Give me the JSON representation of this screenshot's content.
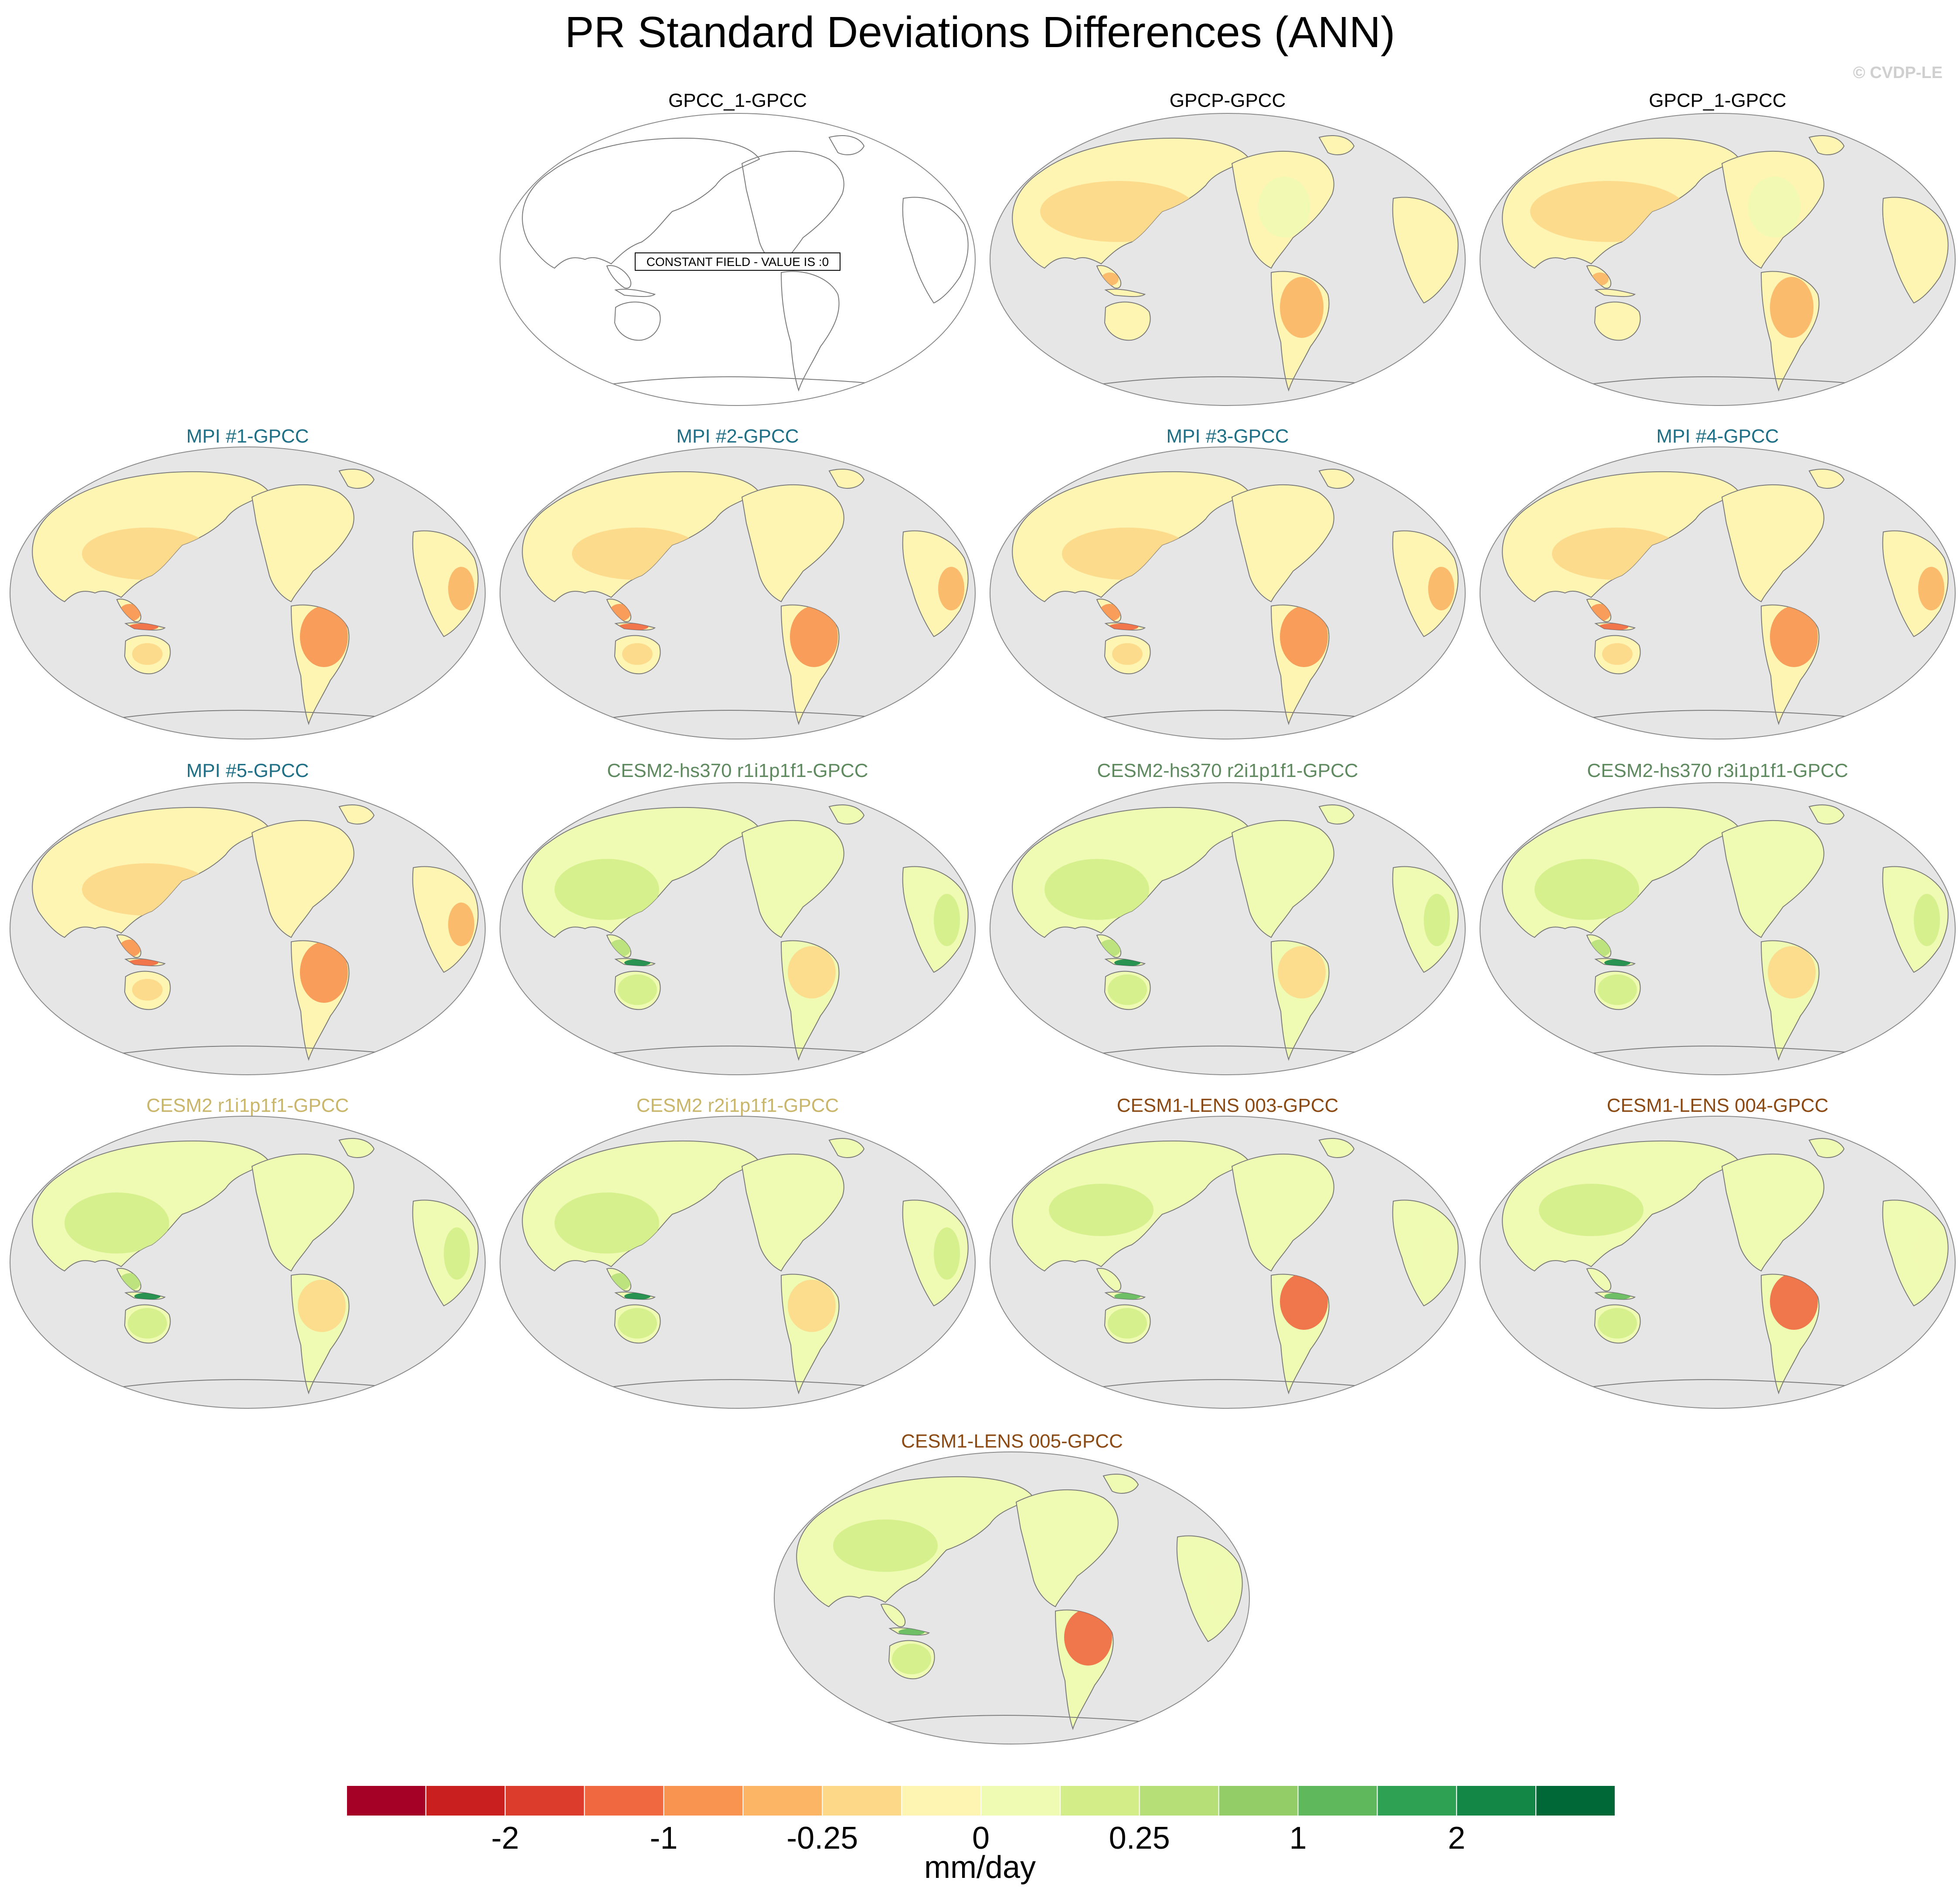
{
  "figure": {
    "title": "PR Standard Deviations Differences (ANN)",
    "watermark": "© CVDP-LE",
    "constant_field_note": "CONSTANT FIELD - VALUE IS :0"
  },
  "colors": {
    "land_gray": "#e6e6e6",
    "coast": "#7a7a7a",
    "title_obs": "#000000",
    "title_mpi": "#1f6f86",
    "title_cesm2hs": "#5f8a5f",
    "title_cesm2": "#c9b66b",
    "title_cesm1": "#8b4a13"
  },
  "panels": [
    {
      "title": "GPCC_1-GPCC",
      "group": "obs",
      "constant": true,
      "pattern": "none"
    },
    {
      "title": "GPCP-GPCC",
      "group": "obs",
      "constant": false,
      "pattern": "gpcp"
    },
    {
      "title": "GPCP_1-GPCC",
      "group": "obs",
      "constant": false,
      "pattern": "gpcp"
    },
    {
      "title": "MPI #1-GPCC",
      "group": "mpi",
      "constant": false,
      "pattern": "mpi"
    },
    {
      "title": "MPI #2-GPCC",
      "group": "mpi",
      "constant": false,
      "pattern": "mpi"
    },
    {
      "title": "MPI #3-GPCC",
      "group": "mpi",
      "constant": false,
      "pattern": "mpi"
    },
    {
      "title": "MPI #4-GPCC",
      "group": "mpi",
      "constant": false,
      "pattern": "mpi"
    },
    {
      "title": "MPI #5-GPCC",
      "group": "mpi",
      "constant": false,
      "pattern": "mpi"
    },
    {
      "title": "CESM2-hs370 r1i1p1f1-GPCC",
      "group": "cesm2hs",
      "constant": false,
      "pattern": "cesm2"
    },
    {
      "title": "CESM2-hs370 r2i1p1f1-GPCC",
      "group": "cesm2hs",
      "constant": false,
      "pattern": "cesm2"
    },
    {
      "title": "CESM2-hs370 r3i1p1f1-GPCC",
      "group": "cesm2hs",
      "constant": false,
      "pattern": "cesm2"
    },
    {
      "title": "CESM2 r1i1p1f1-GPCC",
      "group": "cesm2",
      "constant": false,
      "pattern": "cesm2"
    },
    {
      "title": "CESM2 r2i1p1f1-GPCC",
      "group": "cesm2",
      "constant": false,
      "pattern": "cesm2"
    },
    {
      "title": "CESM1-LENS 003-GPCC",
      "group": "cesm1",
      "constant": false,
      "pattern": "cesm1"
    },
    {
      "title": "CESM1-LENS 004-GPCC",
      "group": "cesm1",
      "constant": false,
      "pattern": "cesm1"
    },
    {
      "title": "CESM1-LENS 005-GPCC",
      "group": "cesm1",
      "constant": false,
      "pattern": "cesm1"
    }
  ],
  "colorbar": {
    "units": "mm/day",
    "colors": [
      "#a50026",
      "#c9201f",
      "#dc3c2b",
      "#ef6840",
      "#f89450",
      "#fbb565",
      "#fdd888",
      "#fff5b3",
      "#effab2",
      "#d3ee89",
      "#b6e077",
      "#93cd68",
      "#5fb85c",
      "#2fa152",
      "#138746",
      "#006837"
    ],
    "tick_labels": [
      "-2",
      "-1",
      "-0.25",
      "0",
      "0.25",
      "1",
      "2"
    ],
    "tick_after_box": [
      2,
      4,
      6,
      8,
      10,
      12,
      14
    ]
  }
}
